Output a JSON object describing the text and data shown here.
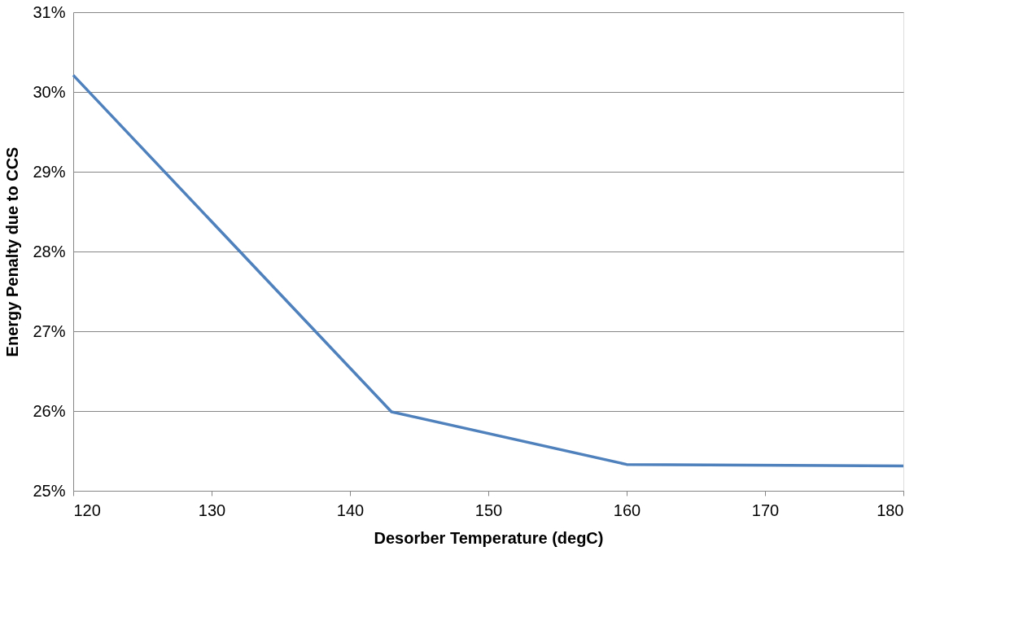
{
  "chart_data": {
    "type": "line",
    "xlabel": "Desorber Temperature (degC)",
    "ylabel": "Energy Penalty due to CCS",
    "x": [
      120,
      143,
      160,
      180
    ],
    "series": [
      {
        "color": "#4f81bd",
        "values": [
          30.21,
          25.99,
          25.33,
          25.31
        ]
      }
    ],
    "xlim": [
      120,
      180
    ],
    "xticks": [
      120,
      130,
      140,
      150,
      160,
      170,
      180
    ],
    "ylim": [
      25,
      31
    ],
    "yticks": [
      {
        "value": 25,
        "label": "25%"
      },
      {
        "value": 26,
        "label": "26%"
      },
      {
        "value": 27,
        "label": "27%"
      },
      {
        "value": 28,
        "label": "28%"
      },
      {
        "value": 29,
        "label": "29%"
      },
      {
        "value": 30,
        "label": "30%"
      },
      {
        "value": 31,
        "label": "31%"
      }
    ],
    "grid": "y",
    "legend": false,
    "marker": "none",
    "line_style": "solid"
  }
}
